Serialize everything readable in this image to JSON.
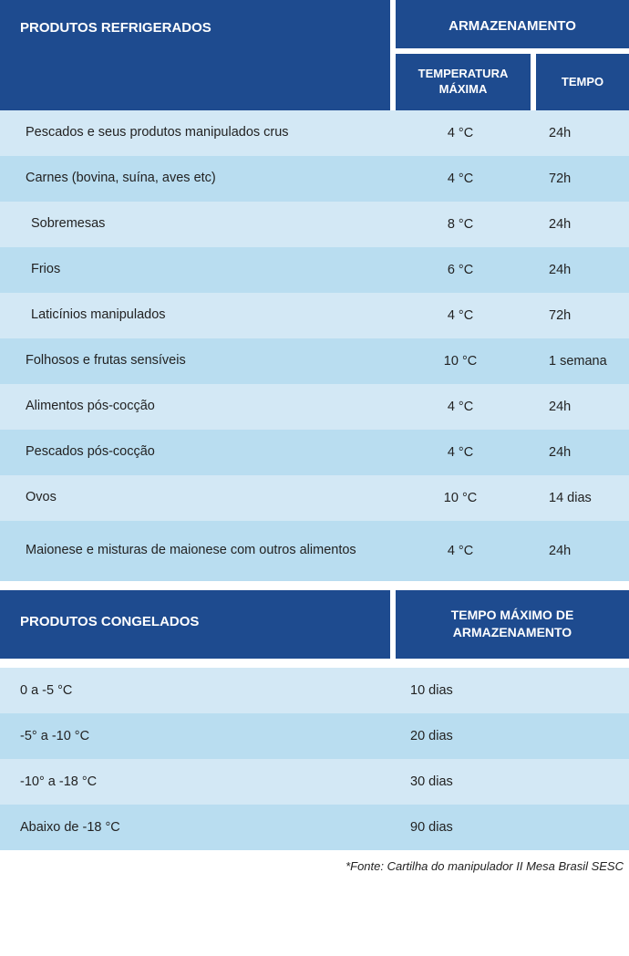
{
  "colors": {
    "header_bg": "#1e4b8f",
    "header_text": "#ffffff",
    "row_light": "#d3e8f5",
    "row_dark": "#b9ddf0",
    "body_text": "#222222",
    "page_bg": "#ffffff"
  },
  "typography": {
    "header_fontsize_pt": 11,
    "body_fontsize_pt": 11,
    "header_weight": 700
  },
  "section1": {
    "title": "PRODUTOS REFRIGERADOS",
    "storage_label": "ARMAZENAMENTO",
    "col_temp": "TEMPERATURA MÁXIMA",
    "col_time": "TEMPO",
    "rows": [
      {
        "product": "Pescados e seus produtos manipulados crus",
        "temp": "4 °C",
        "time": "24h",
        "indent": false
      },
      {
        "product": "Carnes (bovina, suína, aves etc)",
        "temp": "4 °C",
        "time": "72h",
        "indent": false
      },
      {
        "product": "Sobremesas",
        "temp": "8 °C",
        "time": "24h",
        "indent": true
      },
      {
        "product": "Frios",
        "temp": "6 °C",
        "time": "24h",
        "indent": true
      },
      {
        "product": "Laticínios manipulados",
        "temp": "4 °C",
        "time": "72h",
        "indent": true
      },
      {
        "product": "Folhosos e frutas sensíveis",
        "temp": "10 °C",
        "time": "1 semana",
        "indent": false
      },
      {
        "product": "Alimentos pós-cocção",
        "temp": "4 °C",
        "time": "24h",
        "indent": false
      },
      {
        "product": "Pescados pós-cocção",
        "temp": "4 °C",
        "time": "24h",
        "indent": false
      },
      {
        "product": "Ovos",
        "temp": "10 °C",
        "time": "14 dias",
        "indent": false
      },
      {
        "product": "Maionese e misturas de maionese com outros alimentos",
        "temp": "4 °C",
        "time": "24h",
        "indent": false
      }
    ]
  },
  "section2": {
    "title": "PRODUTOS CONGELADOS",
    "col_time": "TEMPO MÁXIMO DE ARMAZENAMENTO",
    "rows": [
      {
        "range": "0 a -5 °C",
        "time": "10 dias"
      },
      {
        "range": "-5° a -10 °C",
        "time": "20 dias"
      },
      {
        "range": "-10° a -18 °C",
        "time": "30 dias"
      },
      {
        "range": "Abaixo de  -18 °C",
        "time": "90 dias"
      }
    ]
  },
  "source": "*Fonte: Cartilha do manipulador II Mesa Brasil SESC"
}
